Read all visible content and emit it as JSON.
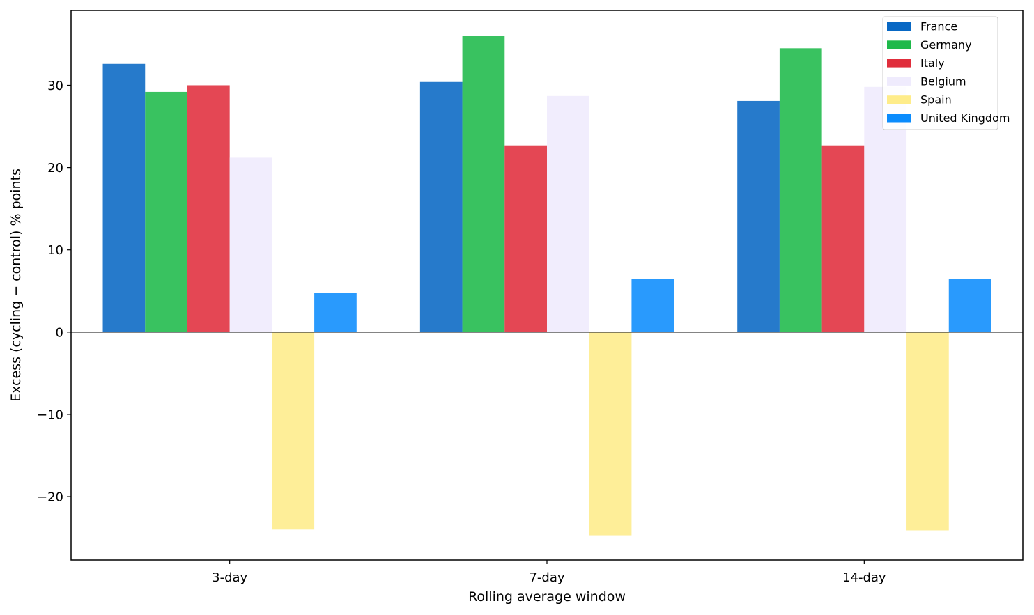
{
  "chart_data": {
    "type": "bar",
    "title": "",
    "xlabel": "Rolling average window",
    "ylabel": "Excess (cycling − control) % points",
    "categories": [
      "3-day",
      "7-day",
      "14-day"
    ],
    "ylim": [
      -27.7,
      39.1
    ],
    "yticks": [
      -20,
      -10,
      0,
      10,
      20,
      30
    ],
    "ytick_labels": [
      "−20",
      "−10",
      "0",
      "10",
      "20",
      "30"
    ],
    "grid": false,
    "legend_position": "top-right",
    "zero_line": true,
    "series": [
      {
        "name": "France",
        "color": "#0868c4",
        "values": [
          32.6,
          30.4,
          28.1
        ]
      },
      {
        "name": "Germany",
        "color": "#1eb94a",
        "values": [
          29.2,
          36.0,
          34.5
        ]
      },
      {
        "name": "Italy",
        "color": "#e02e3c",
        "values": [
          30.0,
          22.7,
          22.7
        ]
      },
      {
        "name": "Belgium",
        "color": "#efebfd",
        "values": [
          21.2,
          28.7,
          29.8
        ]
      },
      {
        "name": "Spain",
        "color": "#feec8a",
        "values": [
          -24.0,
          -24.7,
          -24.1
        ]
      },
      {
        "name": "United Kingdom",
        "color": "#0b8cfd",
        "values": [
          4.8,
          6.5,
          6.5
        ]
      }
    ]
  }
}
